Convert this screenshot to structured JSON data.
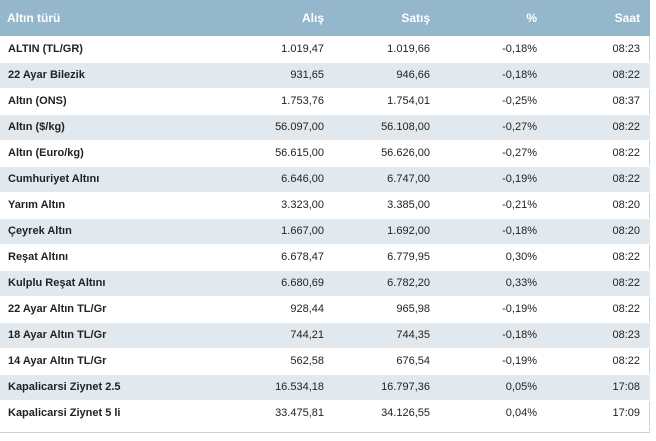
{
  "headers": {
    "name": "Altın türü",
    "alis": "Alış",
    "satis": "Satış",
    "pct": "%",
    "saat": "Saat"
  },
  "rows": [
    {
      "name": "ALTIN (TL/GR)",
      "alis": "1.019,47",
      "satis": "1.019,66",
      "pct": "-0,18%",
      "saat": "08:23"
    },
    {
      "name": "22 Ayar Bilezik",
      "alis": "931,65",
      "satis": "946,66",
      "pct": "-0,18%",
      "saat": "08:22"
    },
    {
      "name": "Altın (ONS)",
      "alis": "1.753,76",
      "satis": "1.754,01",
      "pct": "-0,25%",
      "saat": "08:37"
    },
    {
      "name": "Altın ($/kg)",
      "alis": "56.097,00",
      "satis": "56.108,00",
      "pct": "-0,27%",
      "saat": "08:22"
    },
    {
      "name": "Altın (Euro/kg)",
      "alis": "56.615,00",
      "satis": "56.626,00",
      "pct": "-0,27%",
      "saat": "08:22"
    },
    {
      "name": "Cumhuriyet Altını",
      "alis": "6.646,00",
      "satis": "6.747,00",
      "pct": "-0,19%",
      "saat": "08:22"
    },
    {
      "name": "Yarım Altın",
      "alis": "3.323,00",
      "satis": "3.385,00",
      "pct": "-0,21%",
      "saat": "08:20"
    },
    {
      "name": "Çeyrek Altın",
      "alis": "1.667,00",
      "satis": "1.692,00",
      "pct": "-0,18%",
      "saat": "08:20"
    },
    {
      "name": "Reşat Altını",
      "alis": "6.678,47",
      "satis": "6.779,95",
      "pct": "0,30%",
      "saat": "08:22"
    },
    {
      "name": "Kulplu Reşat Altını",
      "alis": "6.680,69",
      "satis": "6.782,20",
      "pct": "0,33%",
      "saat": "08:22"
    },
    {
      "name": "22 Ayar Altın TL/Gr",
      "alis": "928,44",
      "satis": "965,98",
      "pct": "-0,19%",
      "saat": "08:22"
    },
    {
      "name": "18 Ayar Altın TL/Gr",
      "alis": "744,21",
      "satis": "744,35",
      "pct": "-0,18%",
      "saat": "08:23"
    },
    {
      "name": "14 Ayar Altın TL/Gr",
      "alis": "562,58",
      "satis": "676,54",
      "pct": "-0,19%",
      "saat": "08:22"
    },
    {
      "name": "Kapalicarsi Ziynet 2.5",
      "alis": "16.534,18",
      "satis": "16.797,36",
      "pct": "0,05%",
      "saat": "17:08"
    },
    {
      "name": "Kapalicarsi Ziynet 5 li",
      "alis": "33.475,81",
      "satis": "34.126,55",
      "pct": "0,04%",
      "saat": "17:09"
    }
  ],
  "colors": {
    "header_bg": "#94b7cc",
    "row_alt_bg": "#e2e9ee",
    "header_text": "#ffffff"
  }
}
